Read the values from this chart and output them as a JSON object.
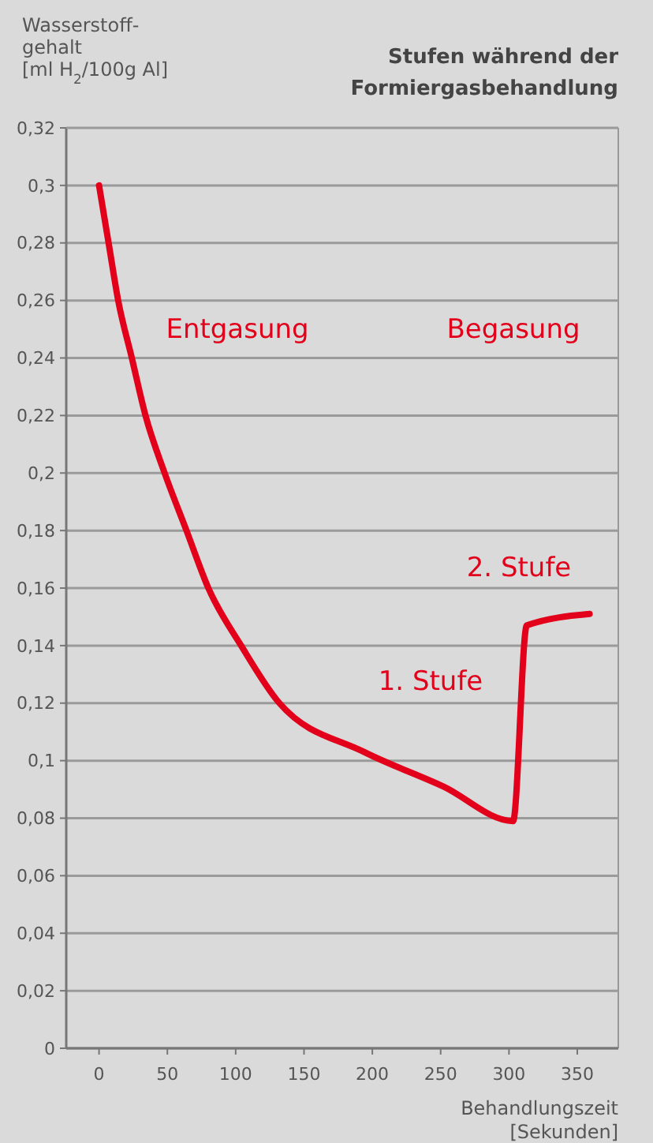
{
  "chart_data": {
    "type": "line",
    "title": "Stufen während der Formiergasbehandlung",
    "ylabel": "Wasserstoff-gehalt [ml H$_{2}$/100g Al]",
    "xlabel": "Behandlungszeit [Sekunden]",
    "x": [
      0,
      7,
      14,
      24,
      34,
      48,
      64,
      80,
      104,
      132,
      194,
      252,
      303,
      313,
      359
    ],
    "series": [
      {
        "color": "#e2001a",
        "values": [
          0.3,
          0.28,
          0.26,
          0.24,
          0.22,
          0.2,
          0.18,
          0.16,
          0.14,
          0.12,
          0.103,
          0.091,
          0.079,
          0.147,
          0.151
        ]
      }
    ],
    "xlim": [
      -24,
      380
    ],
    "xticks": [
      0,
      50,
      100,
      150,
      200,
      250,
      300,
      350
    ],
    "ylim": [
      0,
      0.32
    ],
    "yticks": [
      {
        "value": 0,
        "label": "0"
      },
      {
        "value": 0.02,
        "label": "0,02"
      },
      {
        "value": 0.04,
        "label": "0,04"
      },
      {
        "value": 0.06,
        "label": "0,06"
      },
      {
        "value": 0.08,
        "label": "0,08"
      },
      {
        "value": 0.1,
        "label": "0,1"
      },
      {
        "value": 0.12,
        "label": "0,12"
      },
      {
        "value": 0.14,
        "label": "0,14"
      },
      {
        "value": 0.16,
        "label": "0,16"
      },
      {
        "value": 0.18,
        "label": "0,18"
      },
      {
        "value": 0.2,
        "label": "0,2"
      },
      {
        "value": 0.22,
        "label": "0,22"
      },
      {
        "value": 0.24,
        "label": "0,24"
      },
      {
        "value": 0.26,
        "label": "0,26"
      },
      {
        "value": 0.28,
        "label": "0,28"
      },
      {
        "value": 0.3,
        "label": "0,3"
      },
      {
        "value": 0.32,
        "label": "0,32"
      }
    ],
    "grid": "y",
    "marker": "none",
    "line_style": "solid",
    "annotations": [
      "Entgasung",
      "Begasung",
      "1. Stufe",
      "2. Stufe"
    ]
  }
}
